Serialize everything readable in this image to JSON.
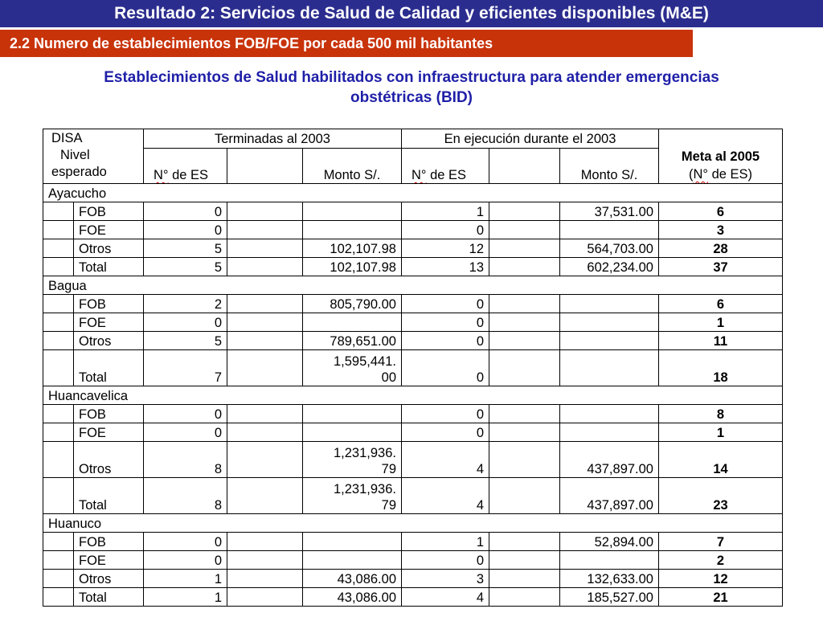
{
  "header": {
    "title": "Resultado 2: Servicios de Salud de Calidad y eficientes disponibles (M&E)",
    "subtitle": "2.2 Numero de establecimientos FOB/FOE por cada 500 mil habitantes"
  },
  "heading": {
    "line1": "Establecimientos de Salud habilitados con infraestructura para atender emergencias",
    "line2": "obstétricas (BID)"
  },
  "colors": {
    "title_bar": "#2b2d8e",
    "sub_bar": "#c8330a",
    "heading": "#1f1fa8"
  },
  "table": {
    "headers": {
      "disa": "DISA",
      "nivel": "Nivel",
      "esperado": "esperado",
      "terminadas": "Terminadas al 2003",
      "ejecucion": "En ejecución durante el 2003",
      "meta_line1": "Meta al 2005",
      "meta_line2_open": "(",
      "meta_line2_n": "N°",
      "meta_line2_rest": " de ES)",
      "n_prefix": "N°",
      "n_suffix": " de ES",
      "monto": "Monto S/."
    },
    "regions": [
      {
        "name": "Ayacucho",
        "rows": [
          {
            "cat": "FOB",
            "t_n": "0",
            "t_m": "",
            "e_n": "1",
            "e_m": "37,531.00",
            "meta": "6"
          },
          {
            "cat": "FOE",
            "t_n": "0",
            "t_m": "",
            "e_n": "0",
            "e_m": "",
            "meta": "3"
          },
          {
            "cat": "Otros",
            "t_n": "5",
            "t_m": "102,107.98",
            "e_n": "12",
            "e_m": "564,703.00",
            "meta": "28"
          },
          {
            "cat": "Total",
            "t_n": "5",
            "t_m": "102,107.98",
            "e_n": "13",
            "e_m": "602,234.00",
            "meta": "37"
          }
        ]
      },
      {
        "name": "Bagua",
        "rows": [
          {
            "cat": "FOB",
            "t_n": "2",
            "t_m": "805,790.00",
            "e_n": "0",
            "e_m": "",
            "meta": "6"
          },
          {
            "cat": "FOE",
            "t_n": "0",
            "t_m": "",
            "e_n": "0",
            "e_m": "",
            "meta": "1"
          },
          {
            "cat": "Otros",
            "t_n": "5",
            "t_m": "789,651.00",
            "e_n": "0",
            "e_m": "",
            "meta": "11"
          },
          {
            "cat": "Total",
            "t_n": "7",
            "t_m": "1,595,441.00",
            "t_m1": "1,595,441.",
            "t_m2": "00",
            "e_n": "0",
            "e_m": "",
            "meta": "18"
          }
        ]
      },
      {
        "name": "Huancavelica",
        "rows": [
          {
            "cat": "FOB",
            "t_n": "0",
            "t_m": "",
            "e_n": "0",
            "e_m": "",
            "meta": "8"
          },
          {
            "cat": "FOE",
            "t_n": "0",
            "t_m": "",
            "e_n": "0",
            "e_m": "",
            "meta": "1"
          },
          {
            "cat": "Otros",
            "t_n": "8",
            "t_m": "1,231,936.79",
            "t_m1": "1,231,936.",
            "t_m2": "79",
            "e_n": "4",
            "e_m": "437,897.00",
            "meta": "14"
          },
          {
            "cat": "Total",
            "t_n": "8",
            "t_m": "1,231,936.79",
            "t_m1": "1,231,936.",
            "t_m2": "79",
            "e_n": "4",
            "e_m": "437,897.00",
            "meta": "23"
          }
        ]
      },
      {
        "name": "Huanuco",
        "rows": [
          {
            "cat": "FOB",
            "t_n": "0",
            "t_m": "",
            "e_n": "1",
            "e_m": "52,894.00",
            "meta": "7"
          },
          {
            "cat": "FOE",
            "t_n": "0",
            "t_m": "",
            "e_n": "0",
            "e_m": "",
            "meta": "2"
          },
          {
            "cat": "Otros",
            "t_n": "1",
            "t_m": "43,086.00",
            "e_n": "3",
            "e_m": "132,633.00",
            "meta": "12"
          },
          {
            "cat": "Total",
            "t_n": "1",
            "t_m": "43,086.00",
            "e_n": "4",
            "e_m": "185,527.00",
            "meta": "21"
          }
        ]
      }
    ]
  }
}
